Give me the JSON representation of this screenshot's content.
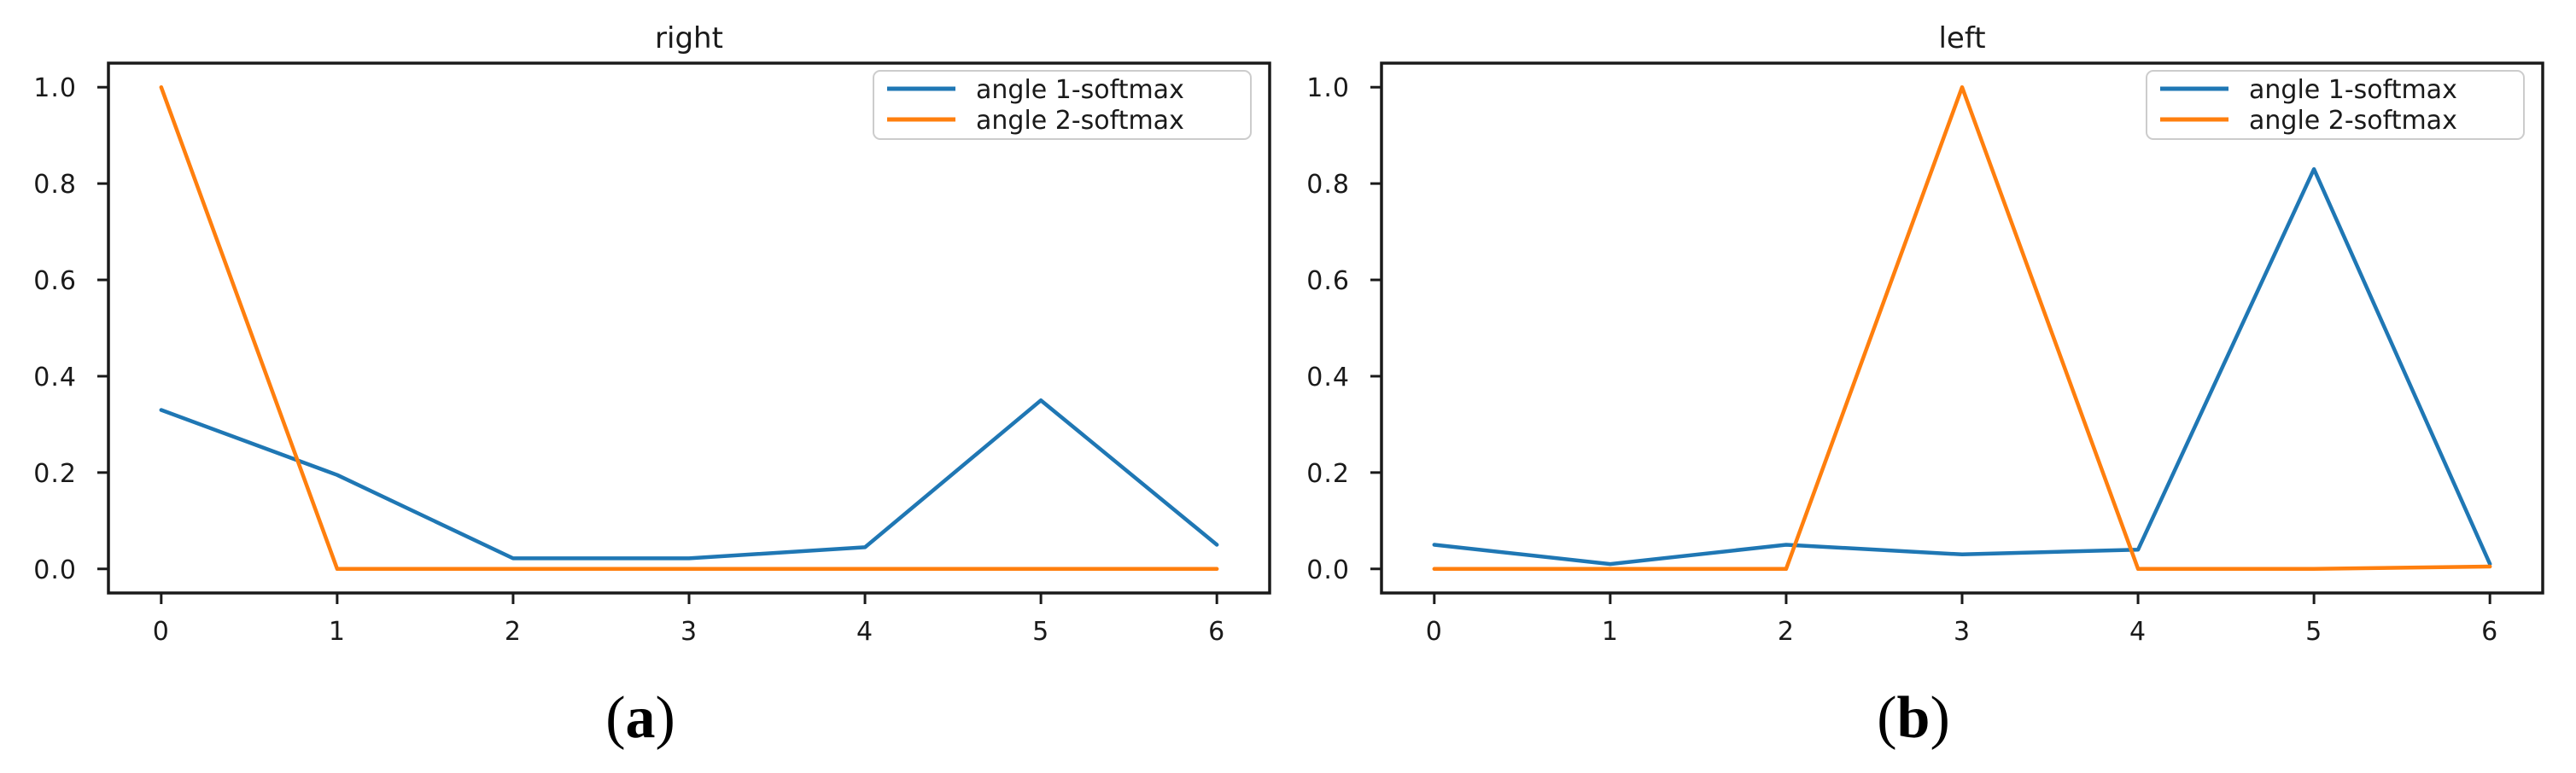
{
  "figure": {
    "background": "#ffffff",
    "text_color": "#1a1a1a"
  },
  "chart_data": [
    {
      "type": "line",
      "title": "right",
      "caption_open": "(",
      "caption_letter": "a",
      "caption_close": ")",
      "x": [
        0,
        1,
        2,
        3,
        4,
        5,
        6
      ],
      "series": [
        {
          "name": "angle 1-softmax",
          "color": "#1f77b4",
          "values": [
            0.33,
            0.195,
            0.022,
            0.022,
            0.045,
            0.35,
            0.05
          ]
        },
        {
          "name": "angle 2-softmax",
          "color": "#ff7f0e",
          "values": [
            1.0,
            0.0,
            0.0,
            0.0,
            0.0,
            0.0,
            0.0
          ]
        }
      ],
      "xticks": [
        "0",
        "1",
        "2",
        "3",
        "4",
        "5",
        "6"
      ],
      "yticks": [
        "0.0",
        "0.2",
        "0.4",
        "0.6",
        "0.8",
        "1.0"
      ],
      "xlim": [
        -0.3,
        6.3
      ],
      "ylim": [
        -0.05,
        1.05
      ],
      "grid": false,
      "legend_position": "upper right"
    },
    {
      "type": "line",
      "title": "left",
      "caption_open": "(",
      "caption_letter": "b",
      "caption_close": ")",
      "x": [
        0,
        1,
        2,
        3,
        4,
        5,
        6
      ],
      "series": [
        {
          "name": "angle 1-softmax",
          "color": "#1f77b4",
          "values": [
            0.05,
            0.01,
            0.05,
            0.03,
            0.04,
            0.83,
            0.01
          ]
        },
        {
          "name": "angle 2-softmax",
          "color": "#ff7f0e",
          "values": [
            0.0,
            0.0,
            0.0,
            1.0,
            0.0,
            0.0,
            0.005
          ]
        }
      ],
      "xticks": [
        "0",
        "1",
        "2",
        "3",
        "4",
        "5",
        "6"
      ],
      "yticks": [
        "0.0",
        "0.2",
        "0.4",
        "0.6",
        "0.8",
        "1.0"
      ],
      "xlim": [
        -0.3,
        6.3
      ],
      "ylim": [
        -0.05,
        1.05
      ],
      "grid": false,
      "legend_position": "upper right"
    }
  ]
}
